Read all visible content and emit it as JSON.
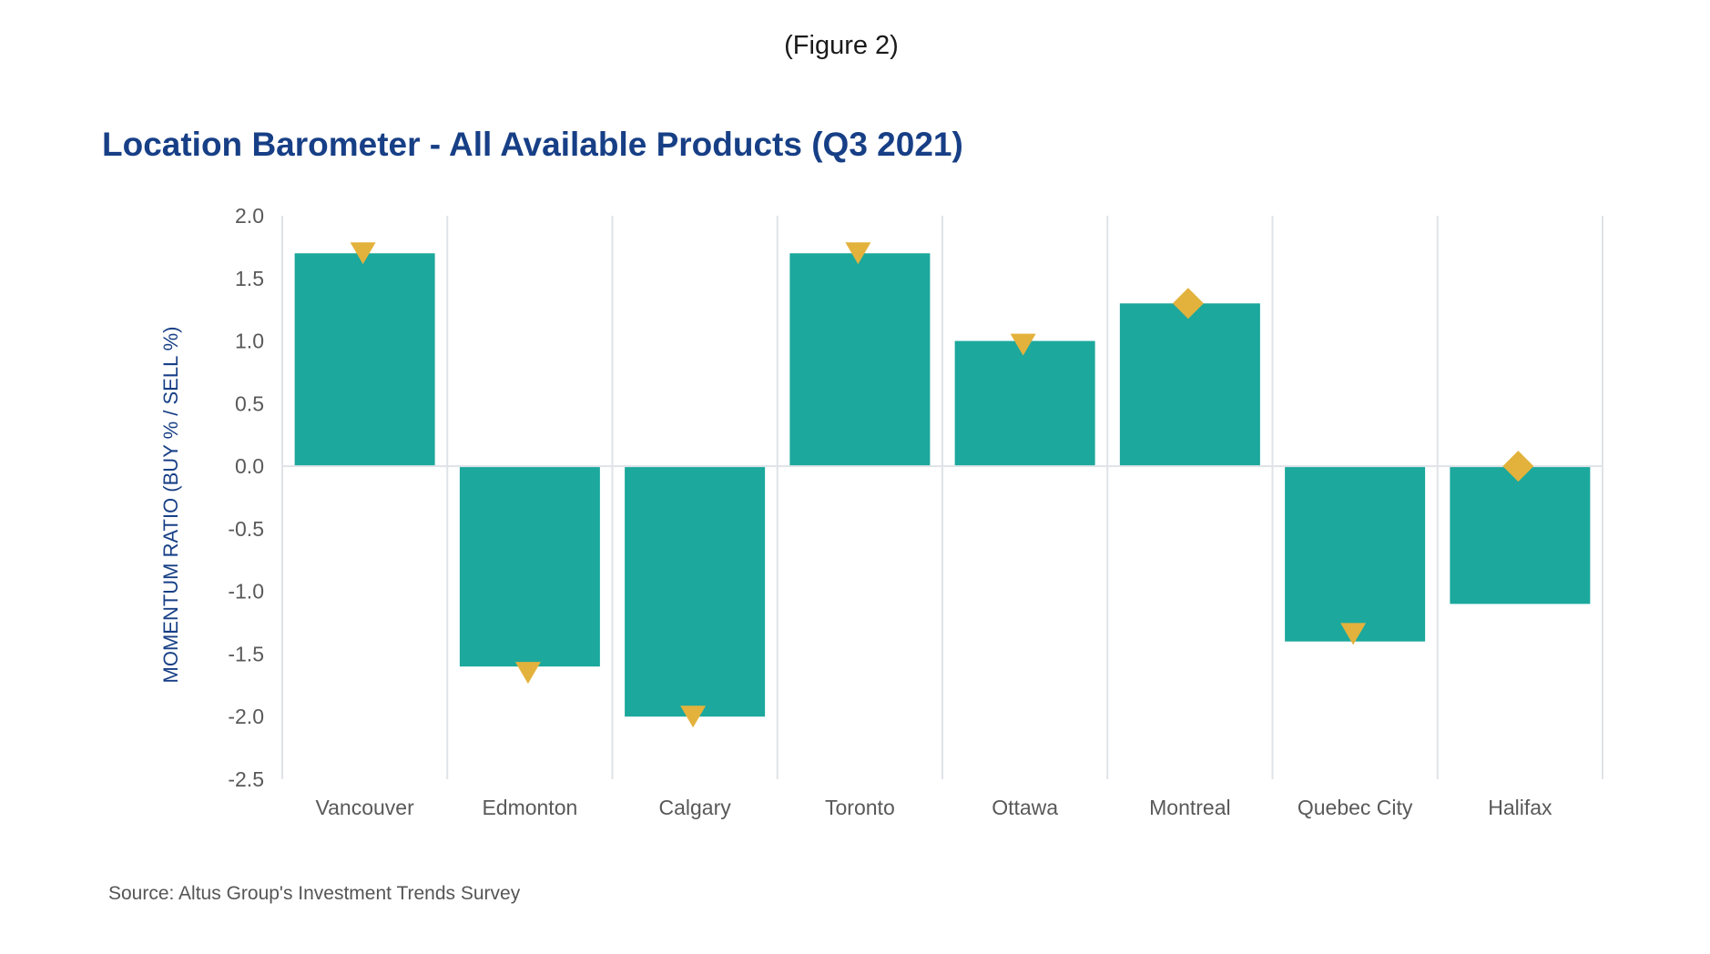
{
  "figure_caption": "(Figure 2)",
  "source_note": "Source: Altus Group's Investment Trends Survey",
  "colors": {
    "bar": "#1ca89c",
    "marker": "#e3b23c",
    "title": "#173f86",
    "grid": "#dfe3e8"
  },
  "chart_data": {
    "type": "bar",
    "title": "Location Barometer - All Available Products (Q3 2021)",
    "xlabel": "",
    "ylabel": "MOMENTUM RATIO (BUY % / SELL %)",
    "ylim": [
      -2.5,
      2.0
    ],
    "yticks": [
      2.0,
      1.5,
      1.0,
      0.5,
      0.0,
      -0.5,
      -1.0,
      -1.5,
      -2.0,
      -2.5
    ],
    "ytick_labels": [
      "2.0",
      "1.5",
      "1.0",
      "0.5",
      "0.0",
      "-0.5",
      "-1.0",
      "-1.5",
      "-2.0",
      "-2.5"
    ],
    "grid": "vertical category separators",
    "legend": "none",
    "categories": [
      "Vancouver",
      "Edmonton",
      "Calgary",
      "Toronto",
      "Ottawa",
      "Montreal",
      "Quebec City",
      "Halifax"
    ],
    "series": [
      {
        "type": "bar",
        "values": [
          1.7,
          -1.6,
          -2.0,
          1.7,
          1.0,
          1.3,
          -1.4,
          -1.1
        ]
      },
      {
        "type": "marker",
        "values": [
          1.7,
          -1.65,
          -2.0,
          1.7,
          0.97,
          1.3,
          -1.34,
          0.0
        ],
        "shapes": [
          "triangle-down",
          "triangle-down",
          "triangle-down",
          "triangle-down",
          "triangle-down",
          "diamond",
          "triangle-down",
          "diamond"
        ]
      }
    ]
  }
}
